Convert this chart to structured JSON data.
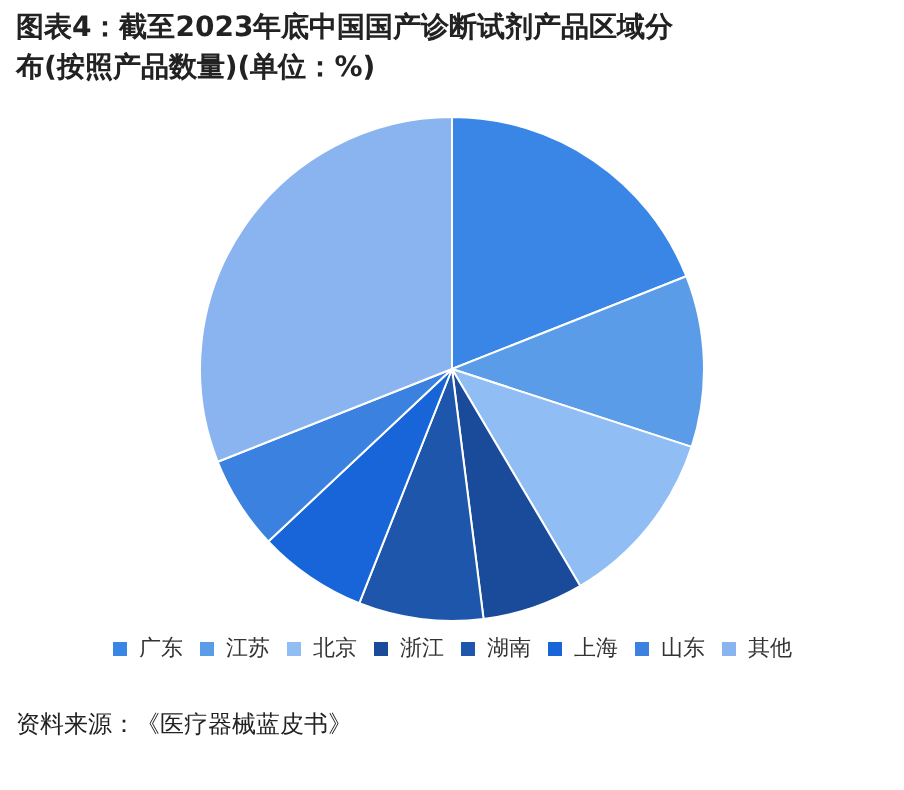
{
  "chart_data": {
    "type": "pie",
    "title": "图表4：截至2023年底中国国产诊断试剂产品区域分布(按照产品数量)(单位：%)",
    "categories": [
      "广东",
      "江苏",
      "北京",
      "浙江",
      "湖南",
      "上海",
      "山东",
      "其他"
    ],
    "values": [
      19,
      11,
      11.5,
      6.5,
      8,
      7,
      6,
      31
    ],
    "colors": [
      "#3a86e6",
      "#5b9ce8",
      "#90bdf3",
      "#1a4a9a",
      "#1e56ac",
      "#1765d8",
      "#3b82e0",
      "#8ab4ef"
    ],
    "legend": "bottom",
    "annotations": [
      "资料来源：《医疗器械蓝皮书》"
    ]
  }
}
